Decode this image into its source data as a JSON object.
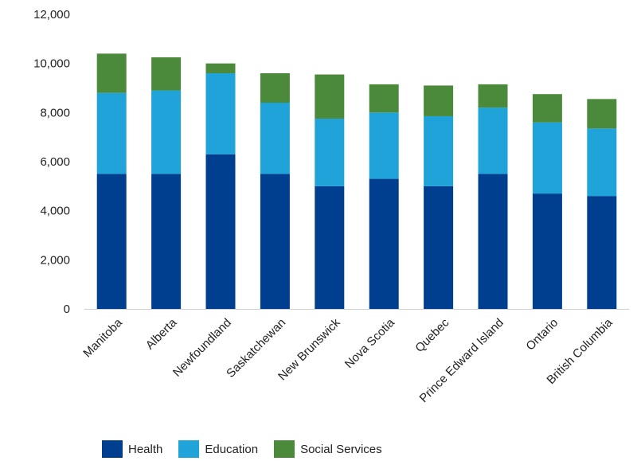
{
  "chart_data": {
    "type": "bar",
    "stacked": true,
    "categories": [
      "Manitoba",
      "Alberta",
      "Newfoundland",
      "Saskatchewan",
      "New Brunswick",
      "Nova Scotia",
      "Quebec",
      "Prince Edward Island",
      "Ontario",
      "British Columbia"
    ],
    "series": [
      {
        "name": "Health",
        "color": "#003f8f",
        "values": [
          5500,
          5500,
          6300,
          5500,
          5000,
          5300,
          5000,
          5500,
          4700,
          4600
        ]
      },
      {
        "name": "Education",
        "color": "#1fa3d8",
        "values": [
          3300,
          3400,
          3300,
          2900,
          2750,
          2700,
          2850,
          2700,
          2900,
          2750
        ]
      },
      {
        "name": "Social Services",
        "color": "#4a8a3a",
        "values": [
          1600,
          1350,
          400,
          1200,
          1800,
          1150,
          1250,
          950,
          1150,
          1200
        ]
      }
    ],
    "yticks": [
      "0",
      "2,000",
      "4,000",
      "6,000",
      "8,000",
      "10,000",
      "12,000"
    ],
    "ylim": [
      0,
      12000
    ],
    "grid": false,
    "legend_position": "bottom"
  }
}
